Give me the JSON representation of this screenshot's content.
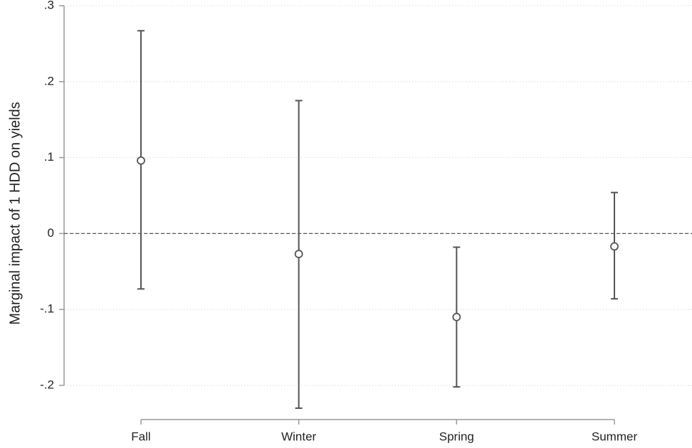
{
  "chart_data": {
    "type": "errorbar",
    "y_label": "Marginal impact of 1 HDD on yields",
    "categories": [
      "Fall",
      "Winter",
      "Spring",
      "Summer"
    ],
    "series": [
      {
        "values": [
          0.096,
          -0.027,
          -0.11,
          -0.017
        ],
        "upper": [
          0.267,
          0.175,
          -0.018,
          0.054
        ],
        "lower": [
          -0.073,
          -0.23,
          -0.202,
          -0.086
        ],
        "color": "#555555"
      }
    ],
    "ylim": [
      -0.245,
      0.3
    ],
    "yticks": [
      {
        "value": 0.3,
        "label": ".3"
      },
      {
        "value": 0.2,
        "label": ".2"
      },
      {
        "value": 0.1,
        "label": ".1"
      },
      0,
      {
        "value": -0.1,
        "label": "-.1"
      },
      {
        "value": -0.2,
        "label": "-.2"
      }
    ],
    "yline": 0,
    "grid": true
  }
}
